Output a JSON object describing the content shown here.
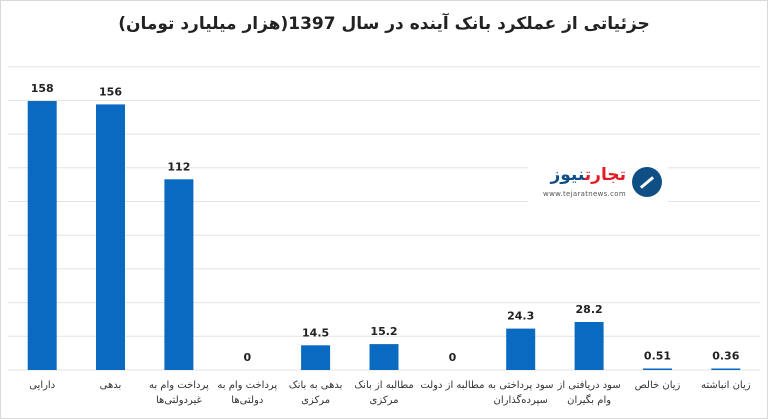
{
  "title": "جزئیاتی از عملکرد بانک آینده در سال 1397(هزار میلیارد تومان)",
  "logo": {
    "name_part1": "تجارت",
    "name_part2": "نیوز",
    "url": "www.tejaratnews.com"
  },
  "colors": {
    "bar": "#0a6ac2",
    "grid": "#e3e3e3"
  },
  "chart_data": {
    "type": "bar",
    "title": "جزئیاتی از عملکرد بانک آینده در سال 1397(هزار میلیارد تومان)",
    "xlabel": "",
    "ylabel": "",
    "grid": true,
    "ylim": [
      0,
      158
    ],
    "categories": [
      "دارایی",
      "بدهی",
      [
        "پرداخت وام به",
        "غیردولتی‌ها"
      ],
      [
        "پرداخت وام به",
        "دولتی‌ها"
      ],
      [
        "بدهی به بانک",
        "مرکزی"
      ],
      [
        "مطالبه از بانک",
        "مرکزی"
      ],
      "مطالبه از دولت",
      [
        "سود پرداختی به",
        "سپرده‌گذاران"
      ],
      [
        "سود دریافتی از",
        "وام بگیران"
      ],
      "زیان خالص",
      "زیان انباشته"
    ],
    "values": [
      158,
      156,
      112,
      0,
      14.5,
      15.2,
      0,
      24.3,
      28.2,
      0.51,
      0.36
    ],
    "value_labels": [
      "158",
      "156",
      "112",
      "0",
      "14.5",
      "15.2",
      "0",
      "24.3",
      "28.2",
      "0.51",
      "0.36"
    ]
  }
}
